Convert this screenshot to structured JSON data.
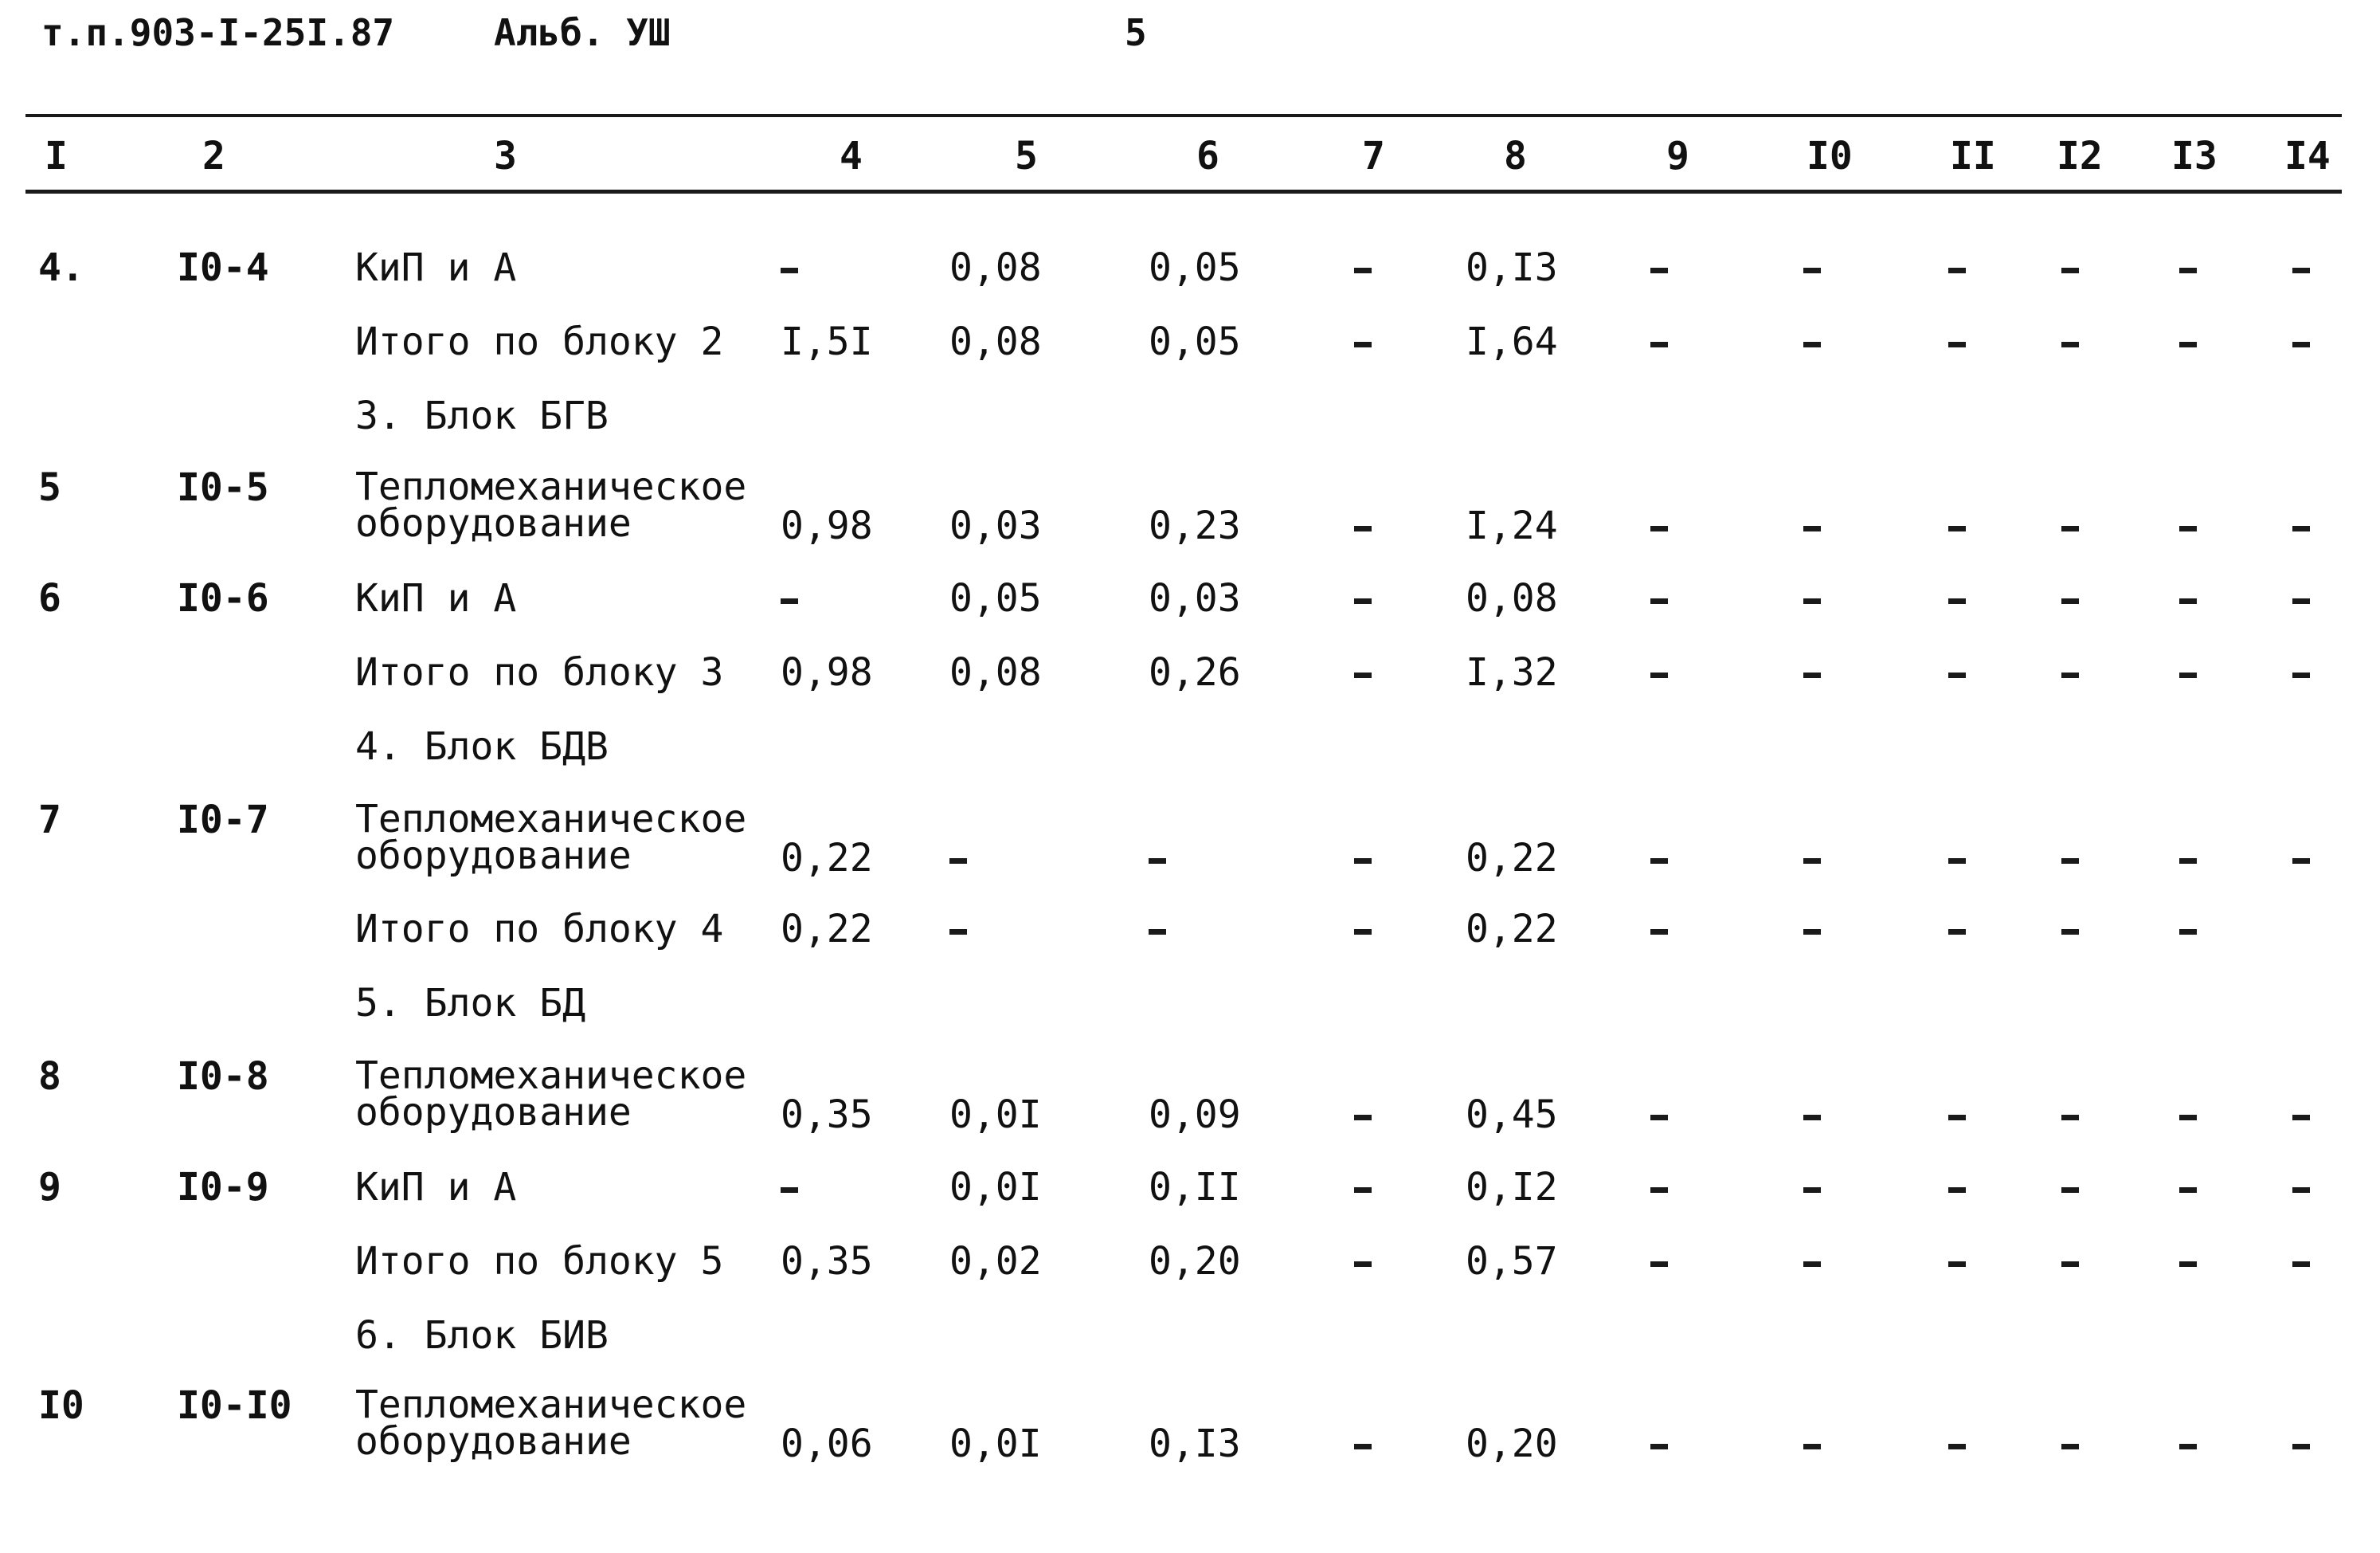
{
  "header": {
    "doc_code": "т.п.903-I-25I.87",
    "album": "Альб. УШ",
    "page": "5"
  },
  "columns": [
    "I",
    "2",
    "3",
    "4",
    "5",
    "6",
    "7",
    "8",
    "9",
    "I0",
    "II",
    "I2",
    "I3",
    "I4"
  ],
  "rows": [
    {
      "n": "4.",
      "code": "I0-4",
      "desc": "КиП и А",
      "v": [
        "-",
        "0,08",
        "0,05",
        "-",
        "0,I3",
        "-",
        "-",
        "-",
        "-",
        "-",
        "-"
      ]
    },
    {
      "n": "",
      "code": "",
      "desc": "Итого по блоку 2",
      "v": [
        "I,5I",
        "0,08",
        "0,05",
        "-",
        "I,64",
        "-",
        "-",
        "-",
        "-",
        "-",
        "-"
      ]
    },
    {
      "section": "3. Блок БГВ"
    },
    {
      "n": "5",
      "code": "I0-5",
      "desc": [
        "Тепломеханическое",
        "оборудование"
      ],
      "v": [
        "0,98",
        "0,03",
        "0,23",
        "-",
        "I,24",
        "-",
        "-",
        "-",
        "-",
        "-",
        "-"
      ]
    },
    {
      "n": "6",
      "code": "I0-6",
      "desc": "КиП и А",
      "v": [
        "-",
        "0,05",
        "0,03",
        "-",
        "0,08",
        "-",
        "-",
        "-",
        "-",
        "-",
        "-"
      ]
    },
    {
      "n": "",
      "code": "",
      "desc": "Итого по блоку 3",
      "v": [
        "0,98",
        "0,08",
        "0,26",
        "-",
        "I,32",
        "-",
        "-",
        "-",
        "-",
        "-",
        "-"
      ]
    },
    {
      "section": "4. Блок БДВ"
    },
    {
      "n": "7",
      "code": "I0-7",
      "desc": [
        "Тепломеханическое",
        "оборудование"
      ],
      "v": [
        "0,22",
        "-",
        "-",
        "-",
        "0,22",
        "-",
        "-",
        "-",
        "-",
        "-",
        "-"
      ]
    },
    {
      "n": "",
      "code": "",
      "desc": "Итого по блоку 4",
      "v": [
        "0,22",
        "-",
        "-",
        "-",
        "0,22",
        "-",
        "-",
        "-",
        "-",
        "-",
        ""
      ]
    },
    {
      "section": "5. Блок БД"
    },
    {
      "n": "8",
      "code": "I0-8",
      "desc": [
        "Тепломеханическое",
        "оборудование"
      ],
      "v": [
        "0,35",
        "0,0I",
        "0,09",
        "-",
        "0,45",
        "-",
        "-",
        "-",
        "-",
        "-",
        "-"
      ]
    },
    {
      "n": "9",
      "code": "I0-9",
      "desc": "КиП и А",
      "v": [
        "-",
        "0,0I",
        "0,II",
        "-",
        "0,I2",
        "-",
        "-",
        "-",
        "-",
        "-",
        "-"
      ]
    },
    {
      "n": "",
      "code": "",
      "desc": "Итого по блоку 5",
      "v": [
        "0,35",
        "0,02",
        "0,20",
        "-",
        "0,57",
        "-",
        "-",
        "-",
        "-",
        "-",
        "-"
      ]
    },
    {
      "section": "6. Блок БИВ"
    },
    {
      "n": "I0",
      "code": "I0-I0",
      "desc": [
        "Тепломеханическое",
        "оборудование"
      ],
      "v": [
        "0,06",
        "0,0I",
        "0,I3",
        "-",
        "0,20",
        "-",
        "-",
        "-",
        "-",
        "-",
        "-"
      ]
    }
  ]
}
